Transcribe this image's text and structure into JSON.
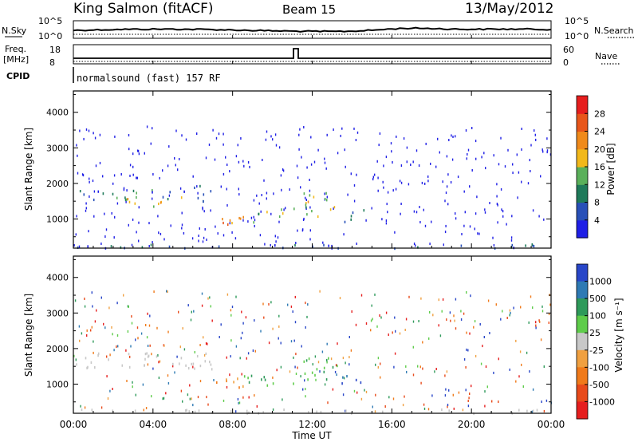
{
  "header": {
    "station": "King Salmon (fitACF)",
    "beam": "Beam 15",
    "date": "13/May/2012"
  },
  "top_panels": {
    "nsky_label": "N.Sky",
    "nsky_ticks": [
      "10^5",
      "10^0"
    ],
    "nsearch_label": "N.Search",
    "nsearch_ticks": [
      "10^5",
      "10^0"
    ],
    "freq_label": "Freq.",
    "freq_unit": "[MHz]",
    "freq_ticks": [
      "18",
      "8"
    ],
    "nave_label": "Nave",
    "nave_ticks": [
      "60",
      "0"
    ],
    "cpid_label": "CPID",
    "cpid_text": "normalsound (fast) 157 RF"
  },
  "chart_data": [
    {
      "type": "heatmap",
      "name": "power",
      "ylabel": "Slant Range [km]",
      "ytick_labels": [
        "1000",
        "2000",
        "3000",
        "4000"
      ],
      "yticks": [
        1000,
        2000,
        3000,
        4000
      ],
      "ylim": [
        180,
        4600
      ],
      "xlabel": "Time UT",
      "xtick_labels": [
        "00:00",
        "04:00",
        "08:00",
        "12:00",
        "16:00",
        "20:00",
        "00:00"
      ],
      "xticks": [
        0,
        4,
        8,
        12,
        16,
        20,
        24
      ],
      "xlim": [
        0,
        24
      ],
      "colorbar": {
        "label": "Power [dB]",
        "tick_labels": [
          "4",
          "8",
          "12",
          "16",
          "20",
          "24",
          "28"
        ],
        "bins": [
          0,
          4,
          8,
          12,
          16,
          20,
          24,
          28,
          32
        ],
        "colors": [
          "#1f1fe6",
          "#2850b8",
          "#1f7a5a",
          "#5ab05a",
          "#f2b81a",
          "#f08a1a",
          "#e8561a",
          "#e61e1e"
        ]
      },
      "regions": [
        {
          "t": [
            0.1,
            5.0
          ],
          "r": [
            1550,
            1850
          ],
          "level": 8
        },
        {
          "t": [
            2.5,
            5.5
          ],
          "r": [
            1350,
            1650
          ],
          "level": 18
        },
        {
          "t": [
            5.5,
            7.0
          ],
          "r": [
            1500,
            2000
          ],
          "level": 8
        },
        {
          "t": [
            6.8,
            8.8
          ],
          "r": [
            850,
            1200
          ],
          "level": 20
        },
        {
          "t": [
            8.8,
            9.6
          ],
          "r": [
            900,
            1250
          ],
          "level": 14
        },
        {
          "t": [
            9.7,
            10.4
          ],
          "r": [
            950,
            1250
          ],
          "level": 18
        },
        {
          "t": [
            10.4,
            11.2
          ],
          "r": [
            1000,
            1350
          ],
          "level": 14
        },
        {
          "t": [
            11.5,
            13.4
          ],
          "r": [
            1100,
            1800
          ],
          "level": 16
        },
        {
          "t": [
            13.4,
            14.6
          ],
          "r": [
            900,
            1300
          ],
          "level": 8
        },
        {
          "t": [
            0.0,
            24.0
          ],
          "r": [
            200,
            320
          ],
          "level": 6
        }
      ]
    },
    {
      "type": "heatmap",
      "name": "velocity",
      "ylabel": "Slant Range [km]",
      "ytick_labels": [
        "1000",
        "2000",
        "3000",
        "4000"
      ],
      "yticks": [
        1000,
        2000,
        3000,
        4000
      ],
      "ylim": [
        180,
        4600
      ],
      "xlabel": "Time UT",
      "xtick_labels": [
        "00:00",
        "04:00",
        "08:00",
        "12:00",
        "16:00",
        "20:00",
        "00:00"
      ],
      "xticks": [
        0,
        4,
        8,
        12,
        16,
        20,
        24
      ],
      "xlim": [
        0,
        24
      ],
      "colorbar": {
        "label": "Velocity [m s⁻¹]",
        "tick_labels": [
          "1000",
          "500",
          "100",
          "25",
          "-25",
          "-100",
          "-500",
          "-1000"
        ],
        "colors": [
          "#2846c8",
          "#2e7ab4",
          "#2e9a5a",
          "#5ecc4a",
          "#c8c8c8",
          "#f0a040",
          "#f07a1a",
          "#e84a1a",
          "#e61e1e"
        ]
      },
      "regions": [
        {
          "t": [
            0.1,
            7.0
          ],
          "r": [
            1450,
            1900
          ],
          "level": "grey"
        },
        {
          "t": [
            6.8,
            8.5
          ],
          "r": [
            850,
            1200
          ],
          "level": "orange"
        },
        {
          "t": [
            8.5,
            11.2
          ],
          "r": [
            950,
            1300
          ],
          "level": "green"
        },
        {
          "t": [
            11.5,
            13.4
          ],
          "r": [
            1100,
            1800
          ],
          "level": "lightgreen"
        },
        {
          "t": [
            13.4,
            14.6
          ],
          "r": [
            900,
            1300
          ],
          "level": "blue"
        },
        {
          "t": [
            0.0,
            24.0
          ],
          "r": [
            200,
            320
          ],
          "level": "grey"
        }
      ]
    }
  ]
}
